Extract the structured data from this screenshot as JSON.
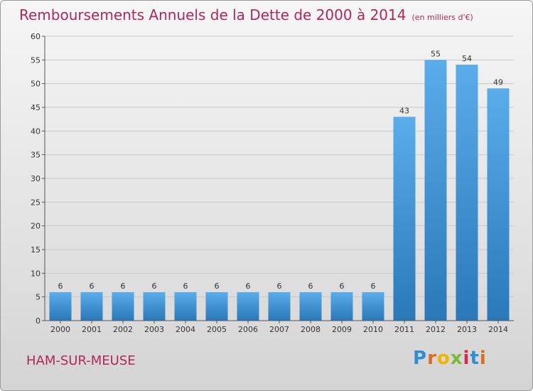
{
  "header": {
    "title": "Remboursements Annuels de la Dette de 2000 à 2014",
    "subtitle": "(en milliers d'€)"
  },
  "footer": {
    "commune": "HAM-SUR-MEUSE",
    "logo": "Proxiti"
  },
  "colors": {
    "title": "#b1275a",
    "bar_top": "#5aacea",
    "bar_bottom": "#2a78b8"
  },
  "chart_data": {
    "type": "bar",
    "title": "Remboursements Annuels de la Dette de 2000 à 2014",
    "subtitle": "(en milliers d'€)",
    "categories": [
      "2000",
      "2001",
      "2002",
      "2003",
      "2004",
      "2005",
      "2006",
      "2007",
      "2008",
      "2009",
      "2010",
      "2011",
      "2012",
      "2013",
      "2014"
    ],
    "values": [
      6,
      6,
      6,
      6,
      6,
      6,
      6,
      6,
      6,
      6,
      6,
      43,
      55,
      54,
      49
    ],
    "ylim": [
      0,
      60
    ],
    "yticks": [
      0,
      5,
      10,
      15,
      20,
      25,
      30,
      35,
      40,
      45,
      50,
      55,
      60
    ],
    "grid": true,
    "legend": "none"
  }
}
